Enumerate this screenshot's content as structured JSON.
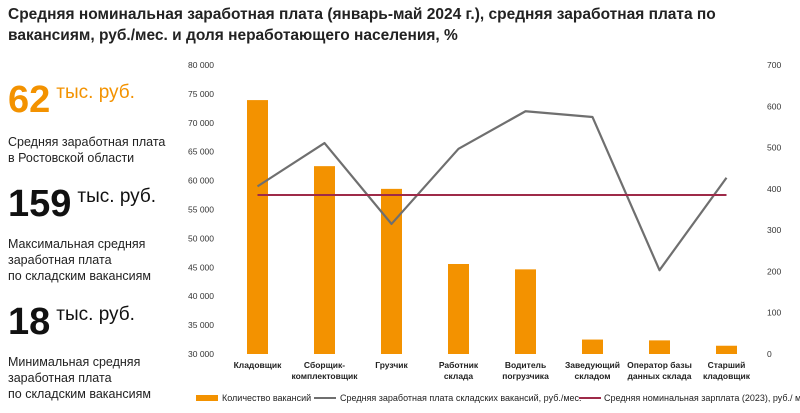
{
  "title": "Средняя номинальная заработная плата (январь-май 2024 г.), средняя заработная плата по вакансиям, руб./мес. и доля неработающего населения, %",
  "stats": [
    {
      "value": "62",
      "unit": "тыс. руб.",
      "desc_lines": [
        "Средняя заработная плата",
        "в Ростовской области"
      ]
    },
    {
      "value": "159",
      "unit": "тыс. руб.",
      "desc_lines": [
        "Максимальная средняя",
        "заработная плата",
        "по складским вакансиям"
      ]
    },
    {
      "value": "18",
      "unit": "тыс. руб.",
      "desc_lines": [
        "Минимальная средняя",
        "заработная плата",
        "по складским вакансиям"
      ]
    }
  ],
  "colors": {
    "bars": "#f39200",
    "line": "#6f6f6f",
    "avg": "#9e2a48",
    "stat1": "#f39200",
    "stat_dark": "#111111"
  },
  "chart_data": {
    "type": "bar",
    "categories": [
      [
        "Кладовщик"
      ],
      [
        "Сборщик-",
        "комплектовщик"
      ],
      [
        "Грузчик"
      ],
      [
        "Работник",
        "склада"
      ],
      [
        "Водитель",
        "погрузчика"
      ],
      [
        "Заведующий",
        "складом"
      ],
      [
        "Оператор базы",
        "данных склада"
      ],
      [
        "Старший",
        "кладовщик"
      ]
    ],
    "series": [
      {
        "name": "Количество вакансий",
        "kind": "bar",
        "axis": "right",
        "values": [
          615,
          455,
          400,
          218,
          205,
          35,
          33,
          20
        ]
      },
      {
        "name": "Средняя заработная плата складских вакансий, руб./мес.",
        "kind": "line",
        "axis": "left",
        "values": [
          59000,
          66500,
          52500,
          65500,
          72000,
          71000,
          44500,
          60500
        ]
      },
      {
        "name": "Средняя номинальная зарплата (2023), руб./ мес.",
        "kind": "line",
        "axis": "left",
        "values": [
          57500,
          57500,
          57500,
          57500,
          57500,
          57500,
          57500,
          57500
        ]
      }
    ],
    "left_axis": {
      "min": 30000,
      "max": 80000,
      "ticks": [
        "30 000",
        "35 000",
        "40 000",
        "45 000",
        "50 000",
        "55 000",
        "60 000",
        "65 000",
        "70 000",
        "75 000",
        "80 000"
      ]
    },
    "right_axis": {
      "min": 0,
      "max": 700,
      "ticks": [
        "0",
        "100",
        "200",
        "300",
        "400",
        "500",
        "600",
        "700"
      ]
    },
    "legend": "bottom"
  }
}
